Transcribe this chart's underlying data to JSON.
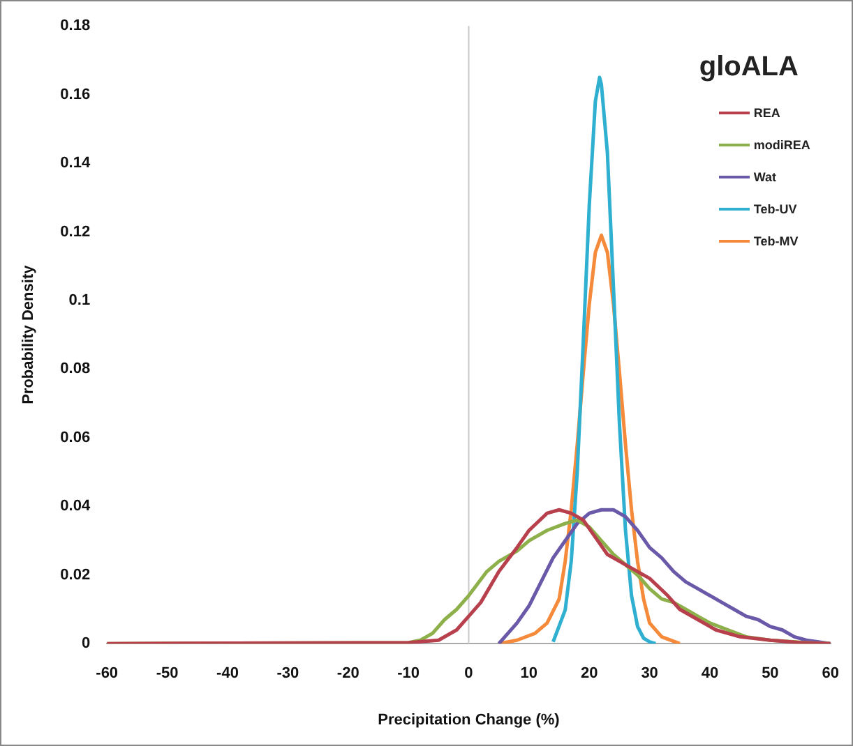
{
  "chart_data": {
    "type": "line",
    "xlabel": "Precipitation Change (%)",
    "ylabel": "Probability Density",
    "legend_title": "gloALA",
    "legend": "top right",
    "marker": "none",
    "grid": false,
    "xlim": [
      -60,
      60
    ],
    "xticks": [
      -60,
      -50,
      -40,
      -30,
      -20,
      -10,
      0,
      10,
      20,
      30,
      40,
      50,
      60
    ],
    "ylim": [
      0,
      0.18
    ],
    "yticks": [
      0,
      0.02,
      0.04,
      0.06,
      0.08,
      0.1,
      0.12,
      0.14,
      0.16,
      0.18
    ],
    "ref_lines": [
      {
        "axis": "x",
        "value": 0,
        "color": "#c8c8c8"
      }
    ],
    "series": [
      {
        "name": "REA",
        "color": "#b8404c",
        "x": [
          -60,
          -10,
          -5,
          -2,
          0,
          2,
          5,
          8,
          10,
          13,
          15,
          17,
          19,
          21,
          23,
          25,
          27,
          30,
          33,
          35,
          38,
          41,
          45,
          50,
          55,
          60
        ],
        "values": [
          0,
          0.0003,
          0.001,
          0.004,
          0.008,
          0.012,
          0.021,
          0.028,
          0.033,
          0.038,
          0.039,
          0.038,
          0.036,
          0.031,
          0.026,
          0.024,
          0.022,
          0.019,
          0.014,
          0.01,
          0.007,
          0.004,
          0.002,
          0.001,
          0.0003,
          0
        ]
      },
      {
        "name": "modiREA",
        "color": "#8db04a",
        "x": [
          -60,
          -10,
          -8,
          -6,
          -4,
          -2,
          0,
          3,
          5,
          8,
          10,
          13,
          16,
          18,
          20,
          22,
          24,
          26,
          28,
          30,
          32,
          34,
          36,
          38,
          40,
          43,
          46,
          50,
          55,
          60
        ],
        "values": [
          0,
          0.0003,
          0.001,
          0.003,
          0.007,
          0.01,
          0.014,
          0.021,
          0.024,
          0.027,
          0.03,
          0.033,
          0.035,
          0.036,
          0.034,
          0.03,
          0.026,
          0.023,
          0.02,
          0.016,
          0.013,
          0.012,
          0.01,
          0.008,
          0.006,
          0.004,
          0.002,
          0.001,
          0.0004,
          0
        ]
      },
      {
        "name": "Wat",
        "color": "#6a58a8",
        "x": [
          5,
          8,
          10,
          12,
          14,
          16,
          18,
          20,
          22,
          24,
          26,
          28,
          30,
          32,
          34,
          36,
          38,
          40,
          42,
          44,
          46,
          48,
          50,
          52,
          54,
          56,
          58,
          60
        ],
        "values": [
          0,
          0.006,
          0.011,
          0.018,
          0.025,
          0.03,
          0.035,
          0.038,
          0.039,
          0.039,
          0.037,
          0.033,
          0.028,
          0.025,
          0.021,
          0.018,
          0.016,
          0.014,
          0.012,
          0.01,
          0.008,
          0.007,
          0.005,
          0.004,
          0.002,
          0.001,
          0.0005,
          0
        ]
      },
      {
        "name": "Teb-UV",
        "color": "#2fb0d0",
        "x": [
          14,
          16,
          17,
          18,
          19,
          20,
          21,
          21.7,
          22,
          23,
          24,
          25,
          26,
          27,
          28,
          29,
          30,
          31
        ],
        "values": [
          0.0005,
          0.0098,
          0.024,
          0.05,
          0.088,
          0.128,
          0.158,
          0.165,
          0.163,
          0.143,
          0.104,
          0.064,
          0.033,
          0.014,
          0.005,
          0.0016,
          0.0005,
          0
        ]
      },
      {
        "name": "Teb-MV",
        "color": "#f58a3a",
        "x": [
          5,
          8,
          11,
          13,
          15,
          16,
          17,
          18,
          19,
          20,
          21,
          22,
          23,
          24,
          25,
          26,
          27,
          28,
          29,
          30,
          32,
          35
        ],
        "values": [
          0,
          0.001,
          0.003,
          0.006,
          0.013,
          0.024,
          0.039,
          0.058,
          0.079,
          0.099,
          0.114,
          0.119,
          0.114,
          0.099,
          0.079,
          0.058,
          0.039,
          0.024,
          0.013,
          0.006,
          0.002,
          0
        ]
      }
    ]
  }
}
